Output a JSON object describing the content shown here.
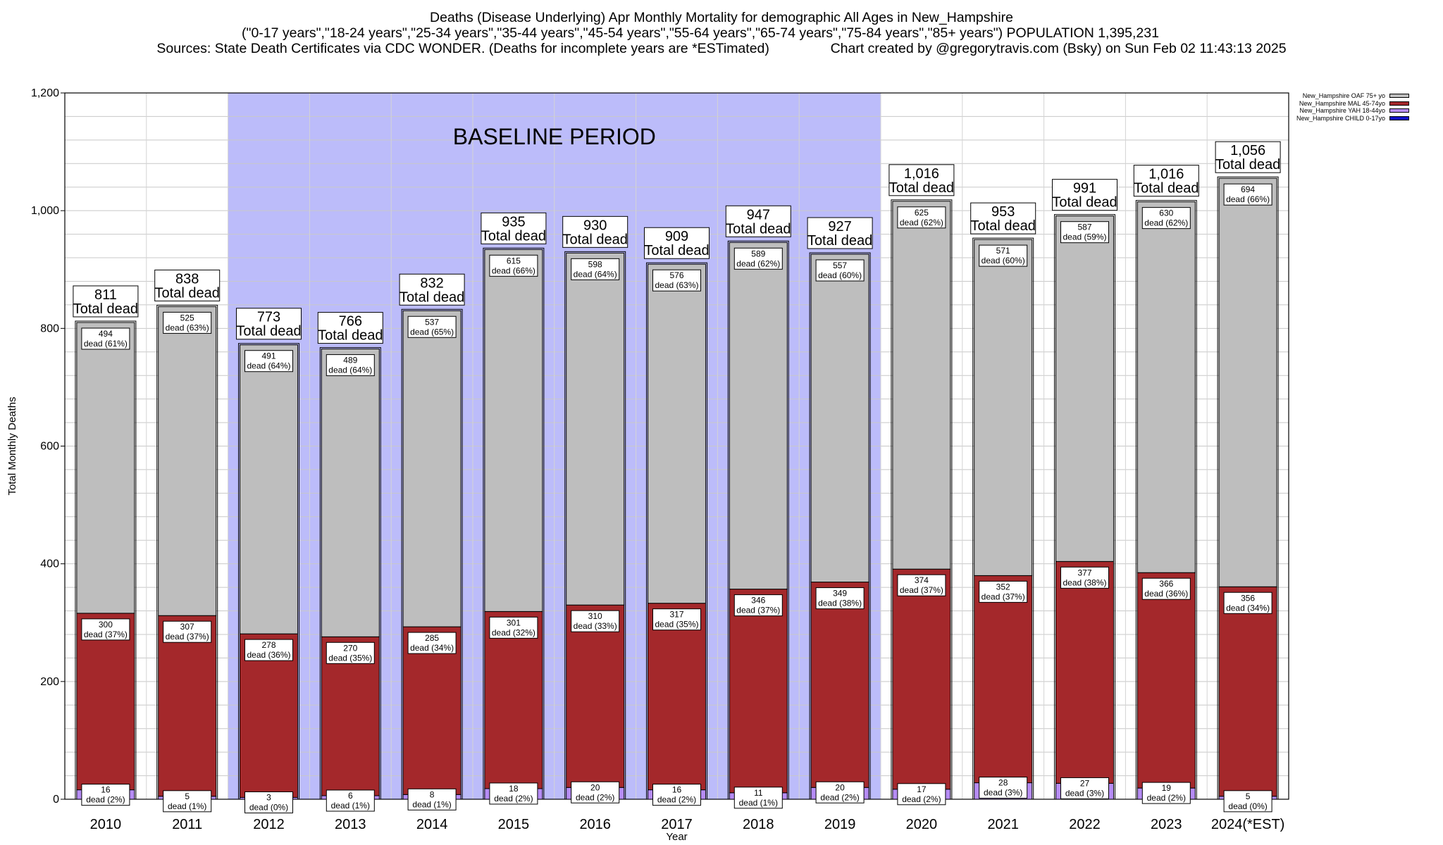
{
  "header": {
    "line1": "Deaths (Disease Underlying) Apr Monthly Mortality for demographic All Ages in New_Hampshire",
    "line2": "(\"0-17 years\",\"18-24 years\",\"25-34 years\",\"35-44 years\",\"45-54 years\",\"55-64 years\",\"65-74 years\",\"75-84 years\",\"85+ years\") POPULATION 1,395,231",
    "line3": "Sources: State Death Certificates via CDC WONDER. (Deaths for incomplete years are *ESTimated)                Chart created by @gregorytravis.com (Bsky) on Sun Feb 02 11:43:13 2025"
  },
  "chart_data": {
    "type": "bar",
    "stacked": true,
    "title": "Deaths (Disease Underlying) Apr Monthly Mortality for demographic All Ages in New_Hampshire",
    "xlabel": "Year",
    "ylabel": "Total Monthly Deaths",
    "ylim": [
      0,
      1200
    ],
    "yticks": [
      0,
      200,
      400,
      600,
      800,
      1000,
      1200
    ],
    "ytick_labels": [
      "0",
      "200",
      "400",
      "600",
      "800",
      "1,000",
      "1,200"
    ],
    "grid": true,
    "legend_position": "top-right",
    "baseline_label": "BASELINE PERIOD",
    "baseline_range": [
      "2012",
      "2019"
    ],
    "baseline_color": "#bcbcfa",
    "total_suffix": "Total dead",
    "segment_word": "dead",
    "categories": [
      "2010",
      "2011",
      "2012",
      "2013",
      "2014",
      "2015",
      "2016",
      "2017",
      "2018",
      "2019",
      "2020",
      "2021",
      "2022",
      "2023",
      "2024(*EST)"
    ],
    "totals": [
      811,
      838,
      773,
      766,
      832,
      935,
      930,
      909,
      947,
      927,
      1016,
      953,
      991,
      1016,
      1056
    ],
    "total_labels": [
      "811",
      "838",
      "773",
      "766",
      "832",
      "935",
      "930",
      "909",
      "947",
      "927",
      "1,016",
      "953",
      "991",
      "1,016",
      "1,056"
    ],
    "series": [
      {
        "name": "New_Hampshire CHILD 0-17yo",
        "color": "#1010c8",
        "values": [
          0,
          0,
          0,
          0,
          0,
          0,
          0,
          0,
          0,
          0,
          0,
          0,
          0,
          0,
          0
        ]
      },
      {
        "name": "New_Hampshire YAH 18-44yo",
        "color": "#b68cf5",
        "values": [
          16,
          5,
          3,
          6,
          8,
          18,
          20,
          16,
          11,
          20,
          17,
          28,
          27,
          19,
          5
        ],
        "percents": [
          "(2%)",
          "(1%)",
          "(0%)",
          "(1%)",
          "(1%)",
          "(2%)",
          "(2%)",
          "(2%)",
          "(1%)",
          "(2%)",
          "(2%)",
          "(3%)",
          "(3%)",
          "(2%)",
          "(0%)"
        ]
      },
      {
        "name": "New_Hampshire MAL 45-74yo",
        "color": "#a4282b",
        "values": [
          300,
          307,
          278,
          270,
          285,
          301,
          310,
          317,
          346,
          349,
          374,
          352,
          377,
          366,
          356
        ],
        "percents": [
          "(37%)",
          "(37%)",
          "(36%)",
          "(35%)",
          "(34%)",
          "(32%)",
          "(33%)",
          "(35%)",
          "(37%)",
          "(38%)",
          "(37%)",
          "(37%)",
          "(38%)",
          "(36%)",
          "(34%)"
        ]
      },
      {
        "name": "New_Hampshire OAF 75+ yo",
        "color": "#bebebe",
        "values": [
          494,
          525,
          491,
          489,
          537,
          615,
          598,
          576,
          589,
          557,
          625,
          571,
          587,
          630,
          694
        ],
        "percents": [
          "(61%)",
          "(63%)",
          "(64%)",
          "(64%)",
          "(65%)",
          "(66%)",
          "(64%)",
          "(63%)",
          "(62%)",
          "(60%)",
          "(62%)",
          "(60%)",
          "(59%)",
          "(62%)",
          "(66%)"
        ]
      }
    ]
  }
}
